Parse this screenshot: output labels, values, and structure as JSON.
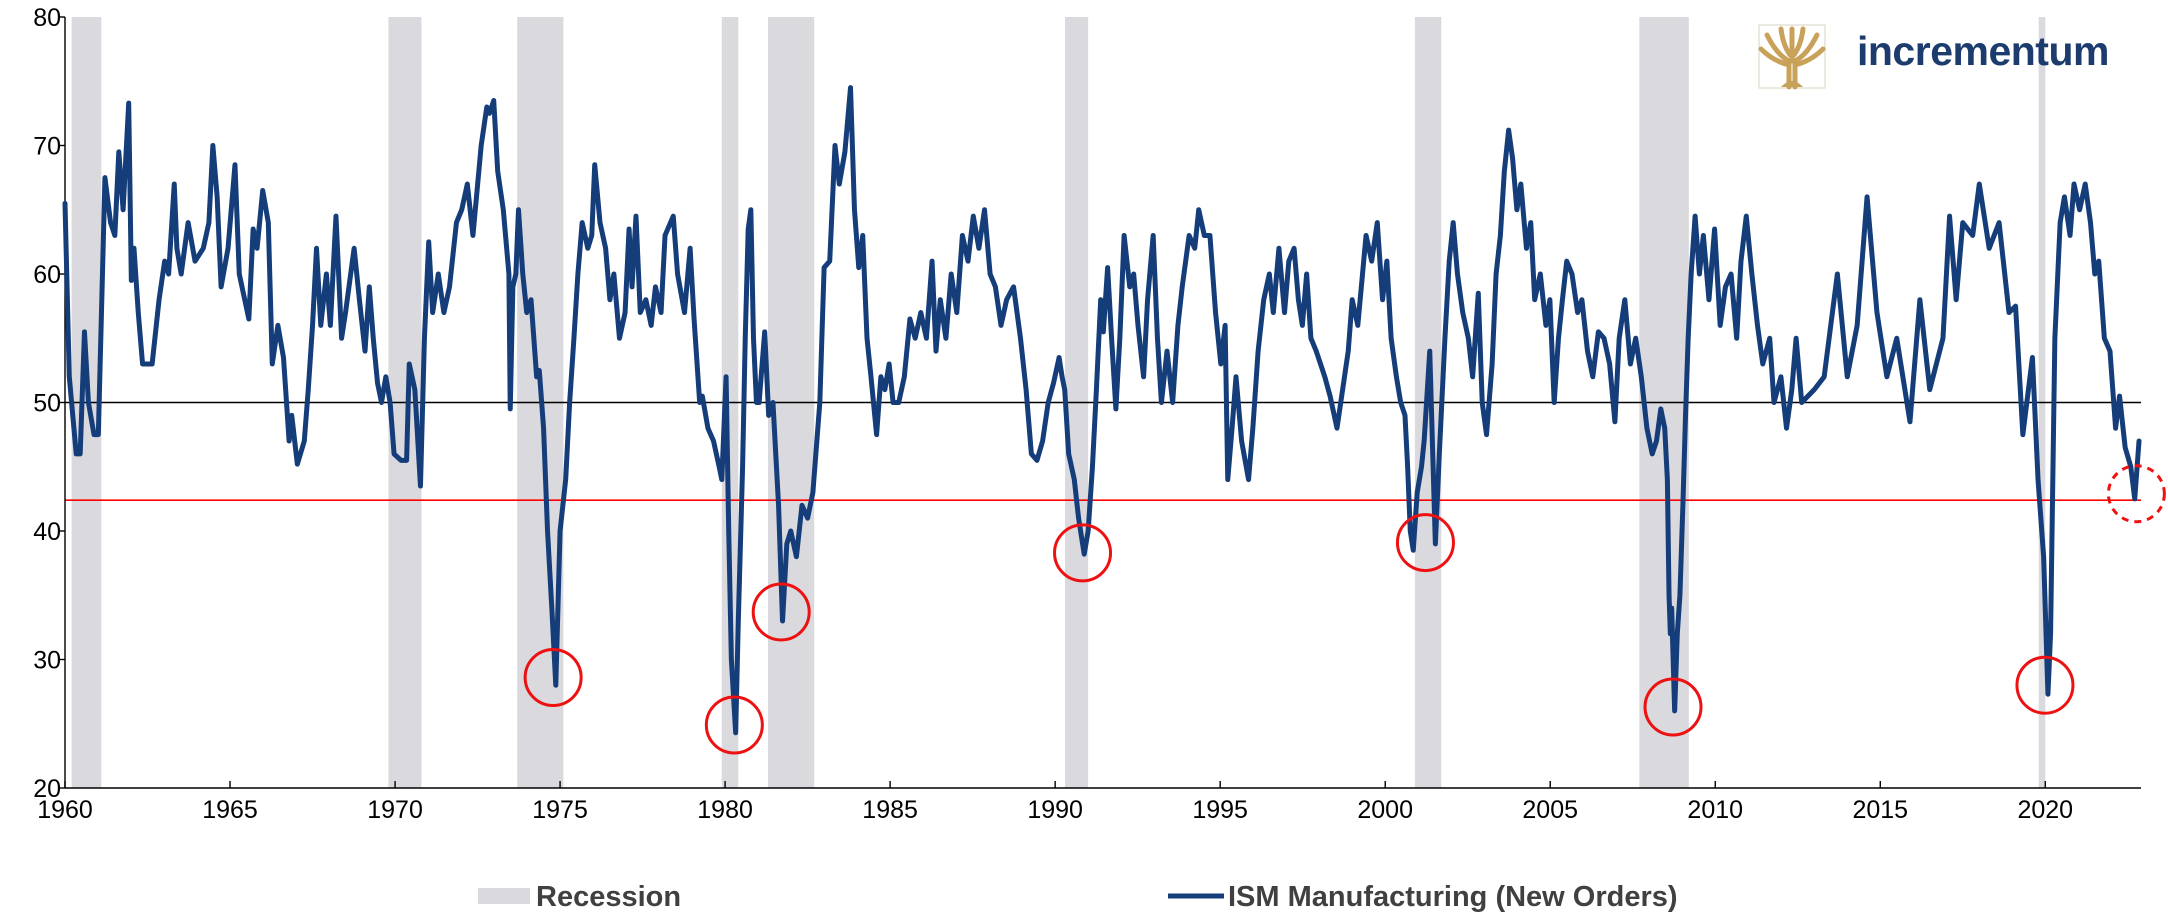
{
  "chart_data": {
    "type": "line",
    "logo_text": "incrementum",
    "xlim": [
      1960,
      2022.9
    ],
    "xticks": [
      1960,
      1965,
      1970,
      1975,
      1980,
      1985,
      1990,
      1995,
      2000,
      2005,
      2010,
      2015,
      2020
    ],
    "ylim": [
      20,
      80
    ],
    "yticks": [
      20,
      30,
      40,
      50,
      60,
      70,
      80
    ],
    "reference_lines": [
      {
        "value": 50,
        "color": "#000000"
      },
      {
        "value": 42.4,
        "color": "#ff0000"
      }
    ],
    "recessions": {
      "name": "Recession",
      "color": "#d9d9de",
      "periods": [
        [
          1960.2,
          1961.1
        ],
        [
          1969.8,
          1970.8
        ],
        [
          1973.7,
          1975.1
        ],
        [
          1979.9,
          1980.4
        ],
        [
          1981.3,
          1982.7
        ],
        [
          1990.3,
          1991.0
        ],
        [
          2000.9,
          2001.7
        ],
        [
          2007.7,
          2009.2
        ],
        [
          2019.8,
          2020.0
        ]
      ]
    },
    "highlights": [
      {
        "x": 1974.79,
        "y": 28.6,
        "dashed": false
      },
      {
        "x": 1980.28,
        "y": 24.9,
        "dashed": false
      },
      {
        "x": 1981.7,
        "y": 33.7,
        "dashed": false
      },
      {
        "x": 1990.83,
        "y": 38.3,
        "dashed": false
      },
      {
        "x": 2001.22,
        "y": 39.1,
        "dashed": false
      },
      {
        "x": 2008.72,
        "y": 26.3,
        "dashed": false
      },
      {
        "x": 2019.99,
        "y": 28.0,
        "dashed": false
      },
      {
        "x": 2022.76,
        "y": 42.9,
        "dashed": true
      }
    ],
    "highlight_color": "#ee1111",
    "x": [
      1960.0,
      1960.13,
      1960.34,
      1960.46,
      1960.59,
      1960.71,
      1960.88,
      1961.01,
      1961.21,
      1961.38,
      1961.51,
      1961.63,
      1961.76,
      1961.93,
      1962.01,
      1962.09,
      1962.22,
      1962.35,
      1962.64,
      1962.85,
      1963.02,
      1963.14,
      1963.31,
      1963.39,
      1963.52,
      1963.73,
      1963.94,
      1964.19,
      1964.36,
      1964.48,
      1964.61,
      1964.73,
      1964.94,
      1965.15,
      1965.28,
      1965.57,
      1965.7,
      1965.82,
      1965.99,
      1966.16,
      1966.28,
      1966.45,
      1966.62,
      1966.79,
      1966.87,
      1967.04,
      1967.25,
      1967.37,
      1967.5,
      1967.62,
      1967.75,
      1967.92,
      1968.04,
      1968.21,
      1968.38,
      1968.5,
      1968.76,
      1968.92,
      1969.09,
      1969.22,
      1969.34,
      1969.47,
      1969.59,
      1969.72,
      1969.85,
      1969.97,
      1970.18,
      1970.35,
      1970.43,
      1970.6,
      1970.77,
      1970.89,
      1971.02,
      1971.14,
      1971.31,
      1971.48,
      1971.65,
      1971.86,
      1972.02,
      1972.19,
      1972.36,
      1972.61,
      1972.78,
      1972.86,
      1972.99,
      1973.11,
      1973.28,
      1973.45,
      1973.49,
      1973.57,
      1973.66,
      1973.74,
      1973.87,
      1973.99,
      1974.12,
      1974.29,
      1974.37,
      1974.5,
      1974.62,
      1974.75,
      1974.87,
      1975.0,
      1975.17,
      1975.29,
      1975.42,
      1975.54,
      1975.67,
      1975.84,
      1975.96,
      1976.05,
      1976.21,
      1976.38,
      1976.51,
      1976.63,
      1976.8,
      1976.97,
      1977.09,
      1977.18,
      1977.3,
      1977.43,
      1977.6,
      1977.76,
      1977.89,
      1978.06,
      1978.18,
      1978.43,
      1978.56,
      1978.77,
      1978.94,
      1979.06,
      1979.23,
      1979.31,
      1979.48,
      1979.65,
      1979.82,
      1979.9,
      1980.03,
      1980.11,
      1980.19,
      1980.32,
      1980.4,
      1980.53,
      1980.61,
      1980.7,
      1980.78,
      1980.86,
      1980.95,
      1981.03,
      1981.2,
      1981.32,
      1981.45,
      1981.62,
      1981.74,
      1981.87,
      1981.99,
      1982.16,
      1982.33,
      1982.5,
      1982.66,
      1982.87,
      1983.0,
      1983.17,
      1983.33,
      1983.46,
      1983.63,
      1983.8,
      1983.92,
      1984.05,
      1984.17,
      1984.3,
      1984.42,
      1984.59,
      1984.72,
      1984.84,
      1984.97,
      1985.09,
      1985.26,
      1985.43,
      1985.6,
      1985.76,
      1985.93,
      1986.1,
      1986.27,
      1986.39,
      1986.52,
      1986.69,
      1986.85,
      1987.02,
      1987.19,
      1987.36,
      1987.52,
      1987.69,
      1987.86,
      1988.03,
      1988.19,
      1988.36,
      1988.53,
      1988.74,
      1988.95,
      1989.12,
      1989.28,
      1989.45,
      1989.62,
      1989.79,
      1989.95,
      1990.12,
      1990.21,
      1990.29,
      1990.41,
      1990.58,
      1990.71,
      1990.88,
      1991.0,
      1991.13,
      1991.25,
      1991.38,
      1991.46,
      1991.59,
      1991.71,
      1991.84,
      1991.96,
      1992.09,
      1992.26,
      1992.38,
      1992.51,
      1992.68,
      1992.8,
      1992.97,
      1993.1,
      1993.22,
      1993.39,
      1993.56,
      1993.72,
      1993.85,
      1994.06,
      1994.23,
      1994.35,
      1994.52,
      1994.69,
      1994.86,
      1995.02,
      1995.15,
      1995.23,
      1995.36,
      1995.48,
      1995.65,
      1995.86,
      1995.99,
      1996.15,
      1996.32,
      1996.49,
      1996.61,
      1996.78,
      1996.95,
      1997.08,
      1997.24,
      1997.37,
      1997.49,
      1997.62,
      1997.75,
      1997.91,
      1998.17,
      1998.33,
      1998.54,
      1998.71,
      1998.88,
      1999.0,
      1999.17,
      1999.42,
      1999.59,
      1999.76,
      1999.92,
      2000.05,
      2000.18,
      2000.34,
      2000.47,
      2000.6,
      2000.68,
      2000.76,
      2000.85,
      2000.97,
      2001.1,
      2001.18,
      2001.35,
      2001.52,
      2001.64,
      2001.81,
      2001.94,
      2002.06,
      2002.19,
      2002.35,
      2002.52,
      2002.65,
      2002.82,
      2002.94,
      2003.07,
      2003.24,
      2003.36,
      2003.49,
      2003.61,
      2003.74,
      2003.86,
      2003.99,
      2004.11,
      2004.28,
      2004.41,
      2004.53,
      2004.7,
      2004.87,
      2004.99,
      2005.12,
      2005.25,
      2005.37,
      2005.5,
      2005.66,
      2005.83,
      2005.96,
      2006.13,
      2006.29,
      2006.46,
      2006.63,
      2006.8,
      2006.96,
      2007.09,
      2007.26,
      2007.43,
      2007.59,
      2007.76,
      2007.93,
      2008.09,
      2008.22,
      2008.35,
      2008.47,
      2008.55,
      2008.6,
      2008.64,
      2008.68,
      2008.77,
      2008.85,
      2008.93,
      2009.02,
      2009.1,
      2009.18,
      2009.27,
      2009.39,
      2009.52,
      2009.64,
      2009.81,
      2009.98,
      2010.15,
      2010.31,
      2010.48,
      2010.65,
      2010.78,
      2010.94,
      2011.11,
      2011.28,
      2011.44,
      2011.65,
      2011.78,
      2011.99,
      2012.16,
      2012.32,
      2012.45,
      2012.62,
      2013.0,
      2013.3,
      2013.7,
      2014.0,
      2014.3,
      2014.6,
      2014.9,
      2015.2,
      2015.5,
      2015.9,
      2016.2,
      2016.5,
      2016.9,
      2017.1,
      2017.3,
      2017.5,
      2017.8,
      2018.0,
      2018.3,
      2018.6,
      2018.9,
      2019.1,
      2019.32,
      2019.61,
      2019.78,
      2019.95,
      2020.08,
      2020.16,
      2020.29,
      2020.45,
      2020.58,
      2020.75,
      2020.87,
      2021.04,
      2021.21,
      2021.37,
      2021.5,
      2021.62,
      2021.79,
      2021.96,
      2022.13,
      2022.25,
      2022.42,
      2022.59,
      2022.71,
      2022.84
    ],
    "series": [
      {
        "name": "ISM Manufacturing (New Orders)",
        "color": "#143d7a",
        "values": [
          65.5,
          52,
          46,
          46,
          55.5,
          50,
          47.5,
          47.5,
          67.5,
          64,
          63,
          69.5,
          65,
          73.3,
          59.5,
          62,
          57,
          53,
          53,
          58,
          61,
          60,
          67,
          62,
          60,
          64,
          61,
          62,
          64,
          70,
          66,
          59,
          62,
          68.5,
          60,
          56.5,
          63.5,
          62,
          66.5,
          64,
          53,
          56,
          53.5,
          47,
          49,
          45.2,
          47,
          51,
          56,
          62,
          56,
          60,
          56,
          64.5,
          55,
          57,
          62,
          58,
          54,
          59,
          55,
          51.5,
          50,
          52,
          50,
          46,
          45.5,
          45.5,
          53,
          51,
          43.5,
          55,
          62.5,
          57,
          60,
          57,
          59,
          64,
          65,
          67,
          63,
          70,
          73,
          72.5,
          73.5,
          68,
          65,
          60,
          49.5,
          59,
          60,
          65,
          60,
          57,
          58,
          52,
          52.5,
          48,
          40,
          34,
          28,
          40,
          44,
          50,
          55,
          60,
          64,
          62,
          63,
          68.5,
          64,
          62,
          58,
          60,
          55,
          57,
          63.5,
          59,
          64.5,
          57,
          58,
          56,
          59,
          57,
          63,
          64.5,
          60,
          57,
          62,
          56.5,
          50,
          50.5,
          48,
          47,
          45,
          44,
          52,
          40,
          30,
          24.3,
          33,
          45,
          55,
          63.5,
          65,
          55,
          50,
          50,
          55.5,
          49,
          50,
          42,
          33,
          39,
          40,
          38,
          42,
          41,
          43,
          50,
          60.5,
          61,
          70,
          67,
          69.5,
          74.5,
          65,
          60.5,
          63,
          55,
          52,
          47.5,
          52,
          51,
          53,
          50,
          50,
          52,
          56.5,
          55,
          57,
          55,
          61,
          54,
          58,
          55,
          60,
          57,
          63,
          61,
          64.5,
          62,
          65,
          60,
          59,
          56,
          58,
          59,
          55,
          51,
          46,
          45.5,
          47,
          50,
          51.5,
          53.5,
          52,
          51,
          46,
          44,
          41,
          38.2,
          40,
          45,
          51,
          58,
          55.5,
          60.5,
          55,
          49.5,
          55,
          63,
          59,
          60,
          56,
          52,
          58,
          63,
          55,
          50,
          54,
          50,
          56,
          59,
          63,
          62,
          65,
          63,
          63,
          57,
          53,
          56,
          44,
          48,
          52,
          47,
          44,
          48,
          54,
          58,
          60,
          57,
          62,
          57,
          61,
          62,
          58,
          56,
          60,
          55,
          54,
          52,
          50.5,
          48,
          51,
          54,
          58,
          56,
          63,
          61,
          64,
          58,
          61,
          55,
          52,
          50,
          49,
          45,
          40,
          38.5,
          43,
          45,
          47,
          54,
          39,
          46,
          55,
          61,
          64,
          60,
          57,
          55,
          52,
          58.5,
          50,
          47.5,
          53,
          60,
          63,
          68,
          71.2,
          69,
          65,
          67,
          62,
          64,
          58,
          60,
          56,
          58,
          50,
          55,
          58,
          61,
          60,
          57,
          58,
          54,
          52,
          55.5,
          55,
          53,
          48.5,
          55,
          58,
          53,
          55,
          52,
          48,
          46,
          47,
          49.5,
          48,
          44,
          35,
          32,
          34,
          26,
          32,
          35,
          42,
          49,
          55,
          60,
          64.5,
          60,
          63,
          58,
          63.5,
          56,
          59,
          60,
          55,
          61,
          64.5,
          60,
          56,
          53,
          55,
          50,
          52,
          48,
          51,
          55,
          50,
          51,
          52,
          60,
          52,
          56,
          66,
          57,
          52,
          55,
          48.5,
          58,
          51,
          55,
          64.5,
          58,
          64,
          63,
          67,
          62,
          64,
          57,
          57.5,
          47.5,
          53.5,
          44,
          38,
          27.3,
          32,
          55,
          64,
          66,
          63,
          67,
          65,
          67,
          64,
          60,
          61,
          55,
          54,
          48,
          50.5,
          46.5,
          45,
          42.5,
          47
        ]
      }
    ]
  }
}
